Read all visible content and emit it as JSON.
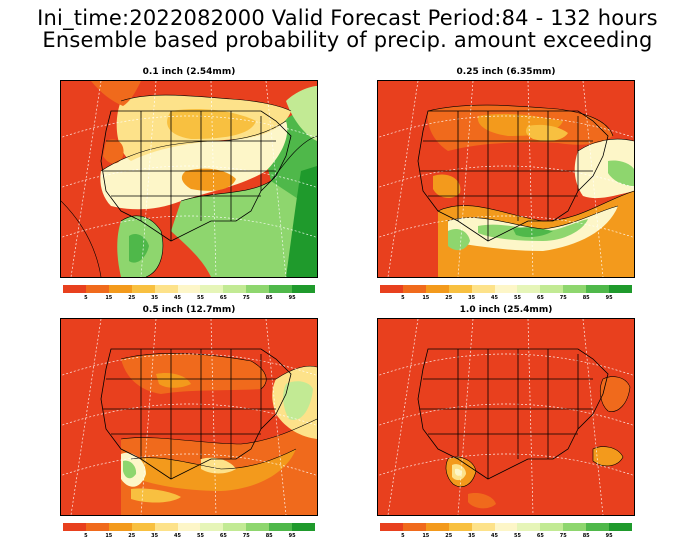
{
  "title_line1": "Ini_time:2022082000  Valid Forecast Period:84 - 132 hours",
  "title_line2": "Ensemble based probability of precip. amount exceeding",
  "colorbar": {
    "colors": [
      "#e8401e",
      "#f06a1c",
      "#f39a1c",
      "#f8c040",
      "#fde28a",
      "#fdf6c8",
      "#e6f5b8",
      "#c2ea94",
      "#8ed66e",
      "#4fb84a",
      "#1f9a2c"
    ],
    "tick_labels": [
      "5",
      "15",
      "25",
      "35",
      "45",
      "55",
      "65",
      "75",
      "85",
      "95"
    ]
  },
  "panels": [
    {
      "title": "0.1 inch (2.54mm)",
      "icon": "precip-map-0.1in"
    },
    {
      "title": "0.25 inch (6.35mm)",
      "icon": "precip-map-0.25in"
    },
    {
      "title": "0.5 inch (12.7mm)",
      "icon": "precip-map-0.5in"
    },
    {
      "title": "1.0 inch (25.4mm)",
      "icon": "precip-map-1.0in"
    }
  ]
}
